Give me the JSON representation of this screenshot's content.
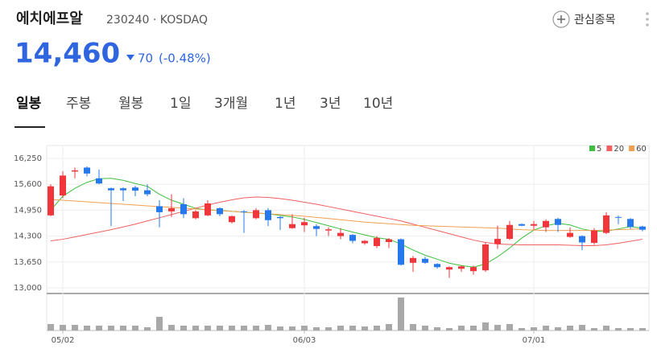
{
  "header": {
    "title": "에치에프알",
    "subtitle": "230240 · KOSDAQ",
    "price": "14,460",
    "change": "70",
    "change_pct": "(-0.48%)",
    "watch": "관심종목"
  },
  "tabs": [
    "일봉",
    "주봉",
    "월봉",
    "1일",
    "3개월",
    "1년",
    "3년",
    "10년"
  ],
  "chart_data": {
    "type": "candlestick",
    "categories": [
      null,
      "05/02",
      null,
      null,
      null,
      null,
      null,
      null,
      null,
      null,
      null,
      null,
      null,
      null,
      null,
      null,
      null,
      null,
      null,
      null,
      null,
      "06/03",
      null,
      null,
      null,
      null,
      null,
      null,
      null,
      null,
      null,
      null,
      null,
      null,
      null,
      null,
      null,
      null,
      null,
      null,
      "07/01",
      null,
      null,
      null,
      null,
      null,
      null,
      null,
      null,
      null
    ],
    "open": [
      14820,
      15320,
      15920,
      16020,
      15750,
      15500,
      15500,
      15520,
      15450,
      15050,
      14920,
      15100,
      14750,
      14820,
      15000,
      14650,
      14920,
      14750,
      14950,
      14780,
      14500,
      14570,
      14550,
      14440,
      14300,
      14330,
      14120,
      14050,
      14150,
      14220,
      13630,
      13730,
      13600,
      13460,
      13480,
      13420,
      13440,
      14100,
      14230,
      14600,
      14560,
      14520,
      14730,
      14280,
      14300,
      14130,
      14380,
      14780,
      14730,
      14540
    ],
    "high": [
      15600,
      15930,
      16020,
      16050,
      15970,
      15520,
      15520,
      15560,
      15600,
      15200,
      15350,
      15250,
      14950,
      15200,
      15020,
      14820,
      14950,
      15000,
      15000,
      14800,
      14850,
      14760,
      14600,
      14520,
      14500,
      14350,
      14200,
      14300,
      14250,
      14240,
      13800,
      13780,
      13620,
      13540,
      13560,
      13560,
      14150,
      14560,
      14680,
      14620,
      14680,
      14720,
      14760,
      14520,
      14320,
      14500,
      14900,
      14820,
      14750,
      14560
    ],
    "low": [
      14800,
      15250,
      15750,
      15800,
      15600,
      14550,
      15180,
      15300,
      15300,
      14520,
      14780,
      14750,
      14720,
      14800,
      14800,
      14620,
      14380,
      14720,
      14550,
      14450,
      14480,
      14400,
      14300,
      14300,
      14220,
      14120,
      14080,
      14000,
      14000,
      13560,
      13400,
      13600,
      13480,
      13250,
      13400,
      13330,
      13400,
      13980,
      14200,
      14550,
      14450,
      14400,
      14400,
      14260,
      13950,
      14080,
      14350,
      14600,
      14480,
      14420
    ],
    "close": [
      15550,
      15820,
      15950,
      15870,
      15620,
      15450,
      15450,
      15440,
      15350,
      14900,
      15000,
      14850,
      14920,
      15120,
      14850,
      14800,
      14900,
      14950,
      14700,
      14750,
      14600,
      14650,
      14480,
      14470,
      14380,
      14180,
      14180,
      14250,
      14220,
      13580,
      13750,
      13630,
      13520,
      13520,
      13540,
      13520,
      14090,
      14230,
      14580,
      14560,
      14600,
      14680,
      14580,
      14380,
      14140,
      14440,
      14820,
      14760,
      14530,
      14460
    ],
    "up_color": "#f0353b",
    "down_color": "#2679ed",
    "series": [
      {
        "name": "5",
        "color": "#3fbf3f",
        "values": [
          14950,
          15300,
          15500,
          15650,
          15740,
          15750,
          15700,
          15620,
          15550,
          15350,
          15200,
          15100,
          15000,
          14950,
          14950,
          14920,
          14900,
          14880,
          14860,
          14820,
          14780,
          14720,
          14640,
          14560,
          14480,
          14400,
          14330,
          14260,
          14220,
          14100,
          13950,
          13820,
          13720,
          13620,
          13560,
          13520,
          13600,
          13780,
          14000,
          14250,
          14450,
          14560,
          14620,
          14580,
          14480,
          14420,
          14420,
          14480,
          14540,
          14500
        ]
      },
      {
        "name": "20",
        "color": "#f06060",
        "values": [
          14180,
          14220,
          14280,
          14340,
          14400,
          14460,
          14530,
          14600,
          14680,
          14760,
          14840,
          14920,
          15000,
          15080,
          15150,
          15210,
          15260,
          15280,
          15270,
          15240,
          15200,
          15150,
          15100,
          15040,
          14980,
          14920,
          14860,
          14800,
          14740,
          14680,
          14600,
          14520,
          14440,
          14360,
          14280,
          14200,
          14140,
          14100,
          14090,
          14080,
          14080,
          14080,
          14080,
          14070,
          14060,
          14060,
          14080,
          14120,
          14170,
          14220
        ]
      },
      {
        "name": "60",
        "color": "#f0a050",
        "values": [
          15220,
          15200,
          15180,
          15160,
          15140,
          15120,
          15100,
          15080,
          15060,
          15040,
          15020,
          15000,
          14980,
          14960,
          14940,
          14920,
          14900,
          14880,
          14860,
          14840,
          14820,
          14800,
          14770,
          14740,
          14710,
          14680,
          14650,
          14630,
          14610,
          14590,
          14570,
          14560,
          14550,
          14540,
          14530,
          14520,
          14510,
          14500,
          14480,
          14460,
          14450,
          14440,
          14440,
          14440,
          14440,
          14440,
          14450,
          14460,
          14470,
          14480
        ]
      }
    ],
    "volume": [
      8,
      7,
      7,
      6,
      6,
      6,
      6,
      6,
      4,
      17,
      7,
      6,
      6,
      6,
      6,
      6,
      6,
      6,
      7,
      5,
      5,
      6,
      4,
      4,
      6,
      6,
      5,
      6,
      8,
      41,
      8,
      6,
      4,
      3,
      6,
      6,
      10,
      7,
      8,
      3,
      4,
      6,
      4,
      6,
      7,
      3,
      6,
      3,
      3,
      3
    ],
    "volume_color": "#a8a8a8",
    "ylim": [
      13000,
      16250
    ],
    "yticks": [
      {
        "value": 16250,
        "label": "16,250"
      },
      {
        "value": 15600,
        "label": "15,600"
      },
      {
        "value": 14950,
        "label": "14,950"
      },
      {
        "value": 14300,
        "label": "14,300"
      },
      {
        "value": 13650,
        "label": "13,650"
      },
      {
        "value": 13000,
        "label": "13,000"
      }
    ],
    "grid": true
  }
}
